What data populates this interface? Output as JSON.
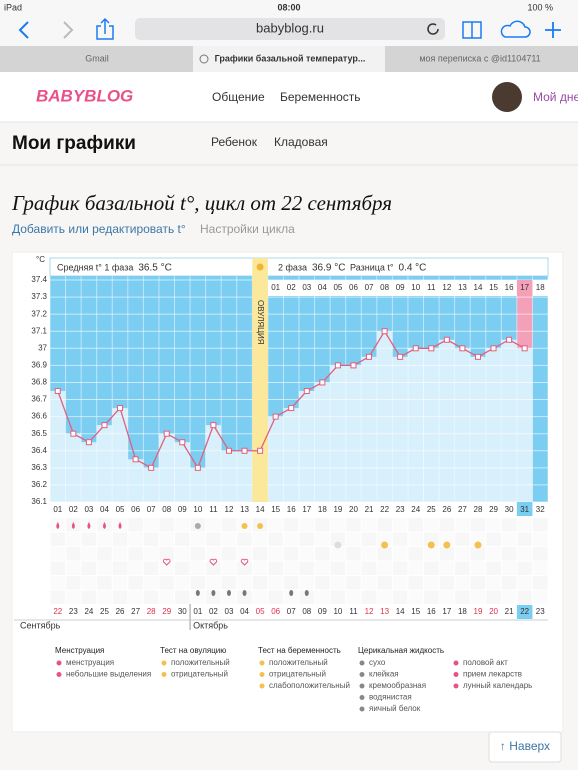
{
  "status_bar": {
    "device": "iPad",
    "time": "08:00",
    "battery": "100 %"
  },
  "browser": {
    "url": "babyblog.ru",
    "tabs": [
      "Gmail",
      "Графики базальной температур...",
      "моя переписка с @id1104711"
    ]
  },
  "site_header": {
    "logo": "BABYBLOG",
    "nav": [
      "Общение",
      "Беременность"
    ],
    "user": "Мой дне"
  },
  "page": {
    "title": "Мои графики",
    "tabs": [
      "Ребенок",
      "Кладовая"
    ],
    "chart_heading": "График базальной t°, цикл от 22 сентября",
    "links": [
      "Добавить или редактировать t°",
      "Настройки цикла"
    ],
    "back_to_top": "↑ Наверх"
  },
  "chart_data": {
    "type": "line",
    "y_unit": "°C",
    "color": "#e0607e",
    "summary": [
      {
        "label": "Средняя t° 1 фаза",
        "value": "36.5 °C"
      },
      {
        "label": "2 фаза",
        "value": "36.9 °C"
      },
      {
        "label": "Разница t°",
        "value": "0.4 °C"
      }
    ],
    "ovulation": {
      "label": "ОВУЛЯЦИЯ",
      "category": "14"
    },
    "categories": [
      "01",
      "02",
      "03",
      "04",
      "05",
      "06",
      "07",
      "08",
      "09",
      "10",
      "11",
      "12",
      "13",
      "14",
      "15",
      "16",
      "17",
      "18",
      "19",
      "20",
      "21",
      "22",
      "23",
      "24",
      "25",
      "26",
      "27",
      "28",
      "29",
      "30",
      "31",
      "32"
    ],
    "values": [
      36.75,
      36.5,
      36.45,
      36.55,
      36.65,
      36.35,
      36.3,
      36.5,
      36.45,
      36.3,
      36.55,
      36.4,
      36.4,
      36.4,
      36.6,
      36.65,
      36.75,
      36.8,
      36.9,
      36.9,
      36.95,
      37.1,
      36.95,
      37,
      37,
      37.05,
      37,
      36.95,
      37,
      37.05,
      37,
      null
    ],
    "highlight_category": "31",
    "phase2_days": [
      "01",
      "02",
      "03",
      "04",
      "05",
      "06",
      "07",
      "08",
      "09",
      "10",
      "11",
      "12",
      "13",
      "14",
      "15",
      "16",
      "17",
      "18"
    ],
    "highlight_phase2_day": "17",
    "dates": [
      {
        "label": "22",
        "red": true
      },
      {
        "label": "23"
      },
      {
        "label": "24"
      },
      {
        "label": "25"
      },
      {
        "label": "26"
      },
      {
        "label": "27"
      },
      {
        "label": "28",
        "red": true
      },
      {
        "label": "29",
        "red": true
      },
      {
        "label": "30"
      },
      {
        "label": "01"
      },
      {
        "label": "02"
      },
      {
        "label": "03"
      },
      {
        "label": "04"
      },
      {
        "label": "05",
        "red": true
      },
      {
        "label": "06",
        "red": true
      },
      {
        "label": "07"
      },
      {
        "label": "08"
      },
      {
        "label": "09"
      },
      {
        "label": "10"
      },
      {
        "label": "11"
      },
      {
        "label": "12",
        "red": true
      },
      {
        "label": "13",
        "red": true
      },
      {
        "label": "14"
      },
      {
        "label": "15"
      },
      {
        "label": "16"
      },
      {
        "label": "17"
      },
      {
        "label": "18"
      },
      {
        "label": "19",
        "red": true
      },
      {
        "label": "20",
        "red": true
      },
      {
        "label": "21"
      },
      {
        "label": "22"
      },
      {
        "label": "23"
      }
    ],
    "months": [
      "Сентябрь",
      "Октябрь"
    ],
    "ylim": [
      36.1,
      37.4
    ],
    "yticks": [
      36.1,
      36.2,
      36.3,
      36.4,
      36.5,
      36.6,
      36.7,
      36.8,
      36.9,
      37,
      37.1,
      37.2,
      37.3,
      37.4
    ],
    "legend": [
      {
        "title": "Менструация",
        "items": [
          "менструация",
          "небольшие выделения"
        ]
      },
      {
        "title": "Тест на овуляцию",
        "items": [
          "положительный",
          "отрицательный"
        ]
      },
      {
        "title": "Тест на беременность",
        "items": [
          "положительный",
          "отрицательный",
          "слабоположительный"
        ]
      },
      {
        "title": "Церикальная жидкость",
        "items": [
          "сухо",
          "клейкая",
          "кремообразная",
          "водянистая",
          "яичный белок"
        ]
      },
      {
        "items": [
          "половой акт",
          "прием лекарств",
          "лунный календарь"
        ]
      }
    ]
  }
}
